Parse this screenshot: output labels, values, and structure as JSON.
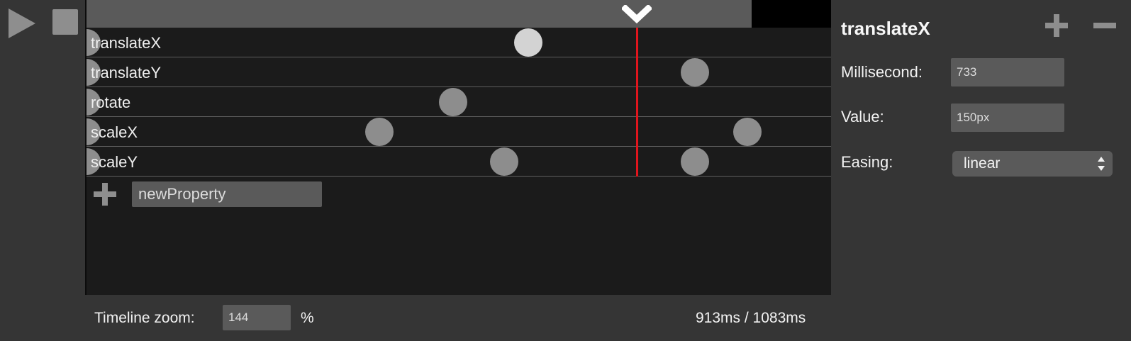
{
  "tracks": [
    {
      "label": "translateX",
      "keyframes": [
        {
          "ms": 733,
          "active": true
        }
      ]
    },
    {
      "label": "translateY",
      "keyframes": [
        {
          "ms": 1010
        }
      ]
    },
    {
      "label": "rotate",
      "keyframes": [
        {
          "ms": 608
        }
      ]
    },
    {
      "label": "scaleX",
      "keyframes": [
        {
          "ms": 486
        },
        {
          "ms": 1096
        }
      ]
    },
    {
      "label": "scaleY",
      "keyframes": [
        {
          "ms": 693
        },
        {
          "ms": 1010
        }
      ]
    }
  ],
  "new_property": {
    "value": "newProperty"
  },
  "footer": {
    "zoom_label": "Timeline zoom:",
    "zoom_value": "144",
    "zoom_unit": "%",
    "time_display": "913ms / 1083ms"
  },
  "playback": {
    "current_ms": 913,
    "total_ms": 1083
  },
  "panel": {
    "title": "translateX",
    "millisecond_label": "Millisecond:",
    "millisecond_value": "733",
    "value_label": "Value:",
    "value_value": "150px",
    "easing_label": "Easing:",
    "easing_value": "linear"
  },
  "icons": {
    "play": "play-icon",
    "stop": "stop-icon",
    "scrubber": "chevron-down-icon",
    "add": "plus-icon",
    "remove": "minus-icon",
    "select_arrows": "up-down-arrows-icon"
  },
  "colors": {
    "playhead": "#e0151d",
    "keyframe": "#8d8d8d",
    "keyframe_active": "#d3d3d3"
  }
}
